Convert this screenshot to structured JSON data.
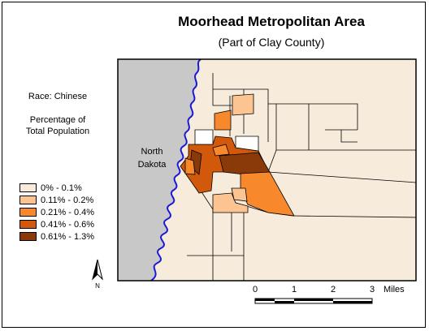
{
  "title": "Moorhead Metropolitan Area",
  "subtitle": "(Part of Clay County)",
  "race_label": "Race: Chinese",
  "measure_line1": "Percentage of",
  "measure_line2": "Total Population",
  "nd_line1": "North",
  "nd_line2": "Dakota",
  "legend": [
    {
      "label": "0% - 0.1%",
      "color": "#f7ecdc"
    },
    {
      "label": "0.11% - 0.2%",
      "color": "#fcc490"
    },
    {
      "label": "0.21% - 0.4%",
      "color": "#f8882c"
    },
    {
      "label": "0.41% - 0.6%",
      "color": "#d2590c"
    },
    {
      "label": "0.61% - 1.3%",
      "color": "#8a3a08"
    }
  ],
  "north_label": "N",
  "scale": {
    "ticks": [
      "0",
      "1",
      "2",
      "3"
    ],
    "unit": "Miles"
  },
  "colors": {
    "river": "#1a1ad6",
    "north_dakota": "#c8c8c8",
    "boundary": "#000000"
  }
}
